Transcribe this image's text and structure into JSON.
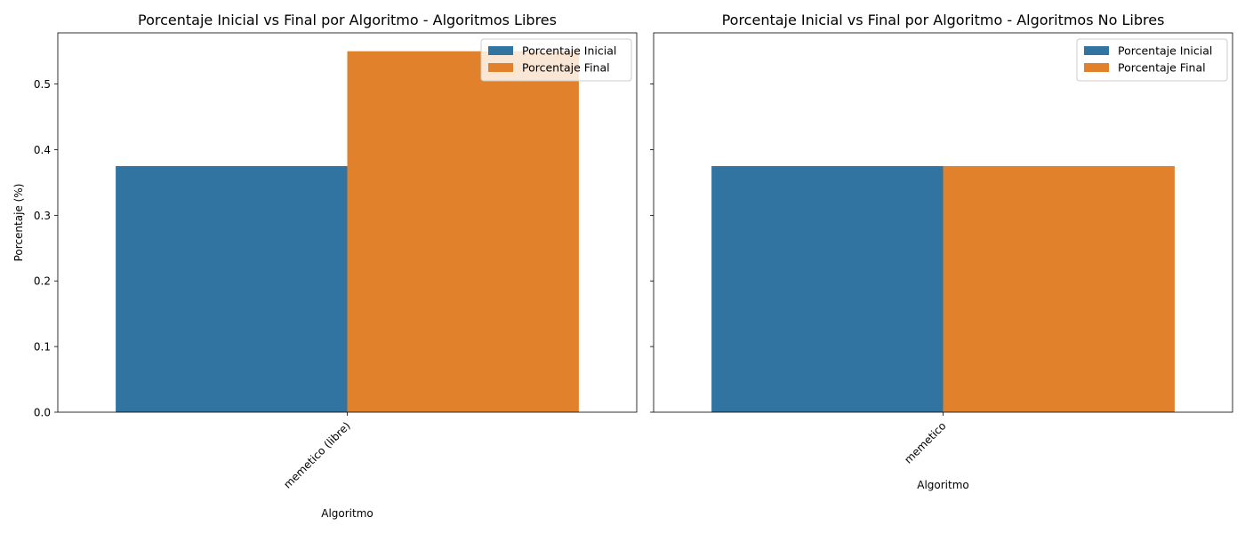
{
  "chart_data": [
    {
      "type": "bar",
      "title": "Porcentaje Inicial vs Final por Algoritmo - Algoritmos Libres",
      "xlabel": "Algoritmo",
      "ylabel": "Porcentaje (%)",
      "categories": [
        "memetico (libre)"
      ],
      "series": [
        {
          "name": "Porcentaje Inicial",
          "values": [
            0.375
          ],
          "color": "#3274a1"
        },
        {
          "name": "Porcentaje Final",
          "values": [
            0.55
          ],
          "color": "#e1812c"
        }
      ],
      "ylim": [
        0,
        0.578
      ],
      "yticks": [
        "0.0",
        "0.1",
        "0.2",
        "0.3",
        "0.4",
        "0.5"
      ],
      "grid": false,
      "legend": "top-right",
      "xtick_rotation": 45
    },
    {
      "type": "bar",
      "title": "Porcentaje Inicial vs Final por Algoritmo - Algoritmos No Libres",
      "xlabel": "Algoritmo",
      "ylabel": "",
      "categories": [
        "memetico"
      ],
      "series": [
        {
          "name": "Porcentaje Inicial",
          "values": [
            0.375
          ],
          "color": "#3274a1"
        },
        {
          "name": "Porcentaje Final",
          "values": [
            0.375
          ],
          "color": "#e1812c"
        }
      ],
      "ylim": [
        0,
        0.578
      ],
      "yticks": [],
      "shared_y": true,
      "grid": false,
      "legend": "top-right",
      "xtick_rotation": 45
    }
  ]
}
